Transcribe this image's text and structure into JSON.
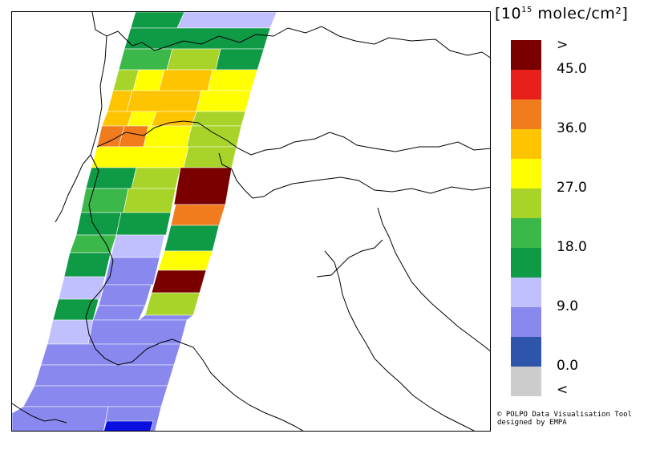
{
  "legend": {
    "title_base": "10",
    "title_exponent": "15",
    "title_unit": "molec/cm²",
    "colors": [
      "#7a0000",
      "#e8201c",
      "#f07c1e",
      "#ffc400",
      "#ffff00",
      "#a8d42a",
      "#3cb84a",
      "#0f9a46",
      "#c0c0ff",
      "#8888ee",
      "#2f55aa",
      "#cccccc"
    ],
    "labels": [
      ">",
      "45.0",
      "36.0",
      "27.0",
      "18.0",
      "9.0",
      "0.0",
      "<"
    ]
  },
  "credits": {
    "line1": "© POLPO Data Visualisation Tool",
    "line2": "designed by EMPA"
  }
}
